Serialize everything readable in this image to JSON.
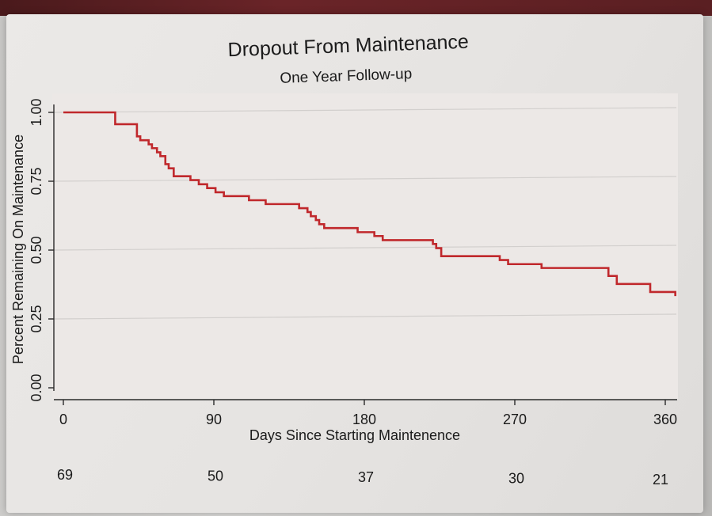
{
  "chart_data": {
    "type": "line",
    "title": "Dropout From Maintenance",
    "subtitle": "One Year Follow-up",
    "xlabel": "Days Since Starting Maintenence",
    "ylabel": "Percent Remaining On Maintenance",
    "xlim": [
      0,
      365
    ],
    "ylim": [
      0,
      1
    ],
    "x_ticks": [
      0,
      90,
      180,
      270,
      360
    ],
    "x_tick_labels": [
      "0",
      "90",
      "180",
      "270",
      "360"
    ],
    "y_ticks": [
      0,
      0.25,
      0.5,
      0.75,
      1.0
    ],
    "y_tick_labels": [
      "0.00",
      "0.25",
      "0.50",
      "0.75",
      "1.00"
    ],
    "grid": true,
    "line_color": "#c0282c",
    "series": [
      {
        "step": "post",
        "x": [
          0,
          31,
          36,
          44,
          46,
          51,
          53,
          56,
          58,
          61,
          63,
          66,
          71,
          76,
          81,
          86,
          91,
          96,
          111,
          116,
          121,
          136,
          141,
          146,
          148,
          151,
          153,
          156,
          161,
          176,
          181,
          186,
          191,
          196,
          211,
          221,
          223,
          226,
          228,
          251,
          261,
          266,
          271,
          286,
          291,
          311,
          326,
          331,
          351,
          366
        ],
        "y": [
          1.0,
          0.957,
          0.957,
          0.913,
          0.899,
          0.884,
          0.87,
          0.855,
          0.841,
          0.812,
          0.797,
          0.768,
          0.768,
          0.754,
          0.739,
          0.725,
          0.71,
          0.696,
          0.681,
          0.681,
          0.667,
          0.667,
          0.652,
          0.638,
          0.623,
          0.609,
          0.594,
          0.58,
          0.58,
          0.565,
          0.565,
          0.551,
          0.536,
          0.536,
          0.536,
          0.522,
          0.507,
          0.478,
          0.478,
          0.478,
          0.464,
          0.449,
          0.449,
          0.435,
          0.435,
          0.435,
          0.406,
          0.377,
          0.348,
          0.333
        ]
      }
    ],
    "number_at_risk": {
      "x": [
        0,
        90,
        180,
        270,
        360
      ],
      "values": [
        "69",
        "50",
        "37",
        "30",
        "21"
      ]
    }
  }
}
